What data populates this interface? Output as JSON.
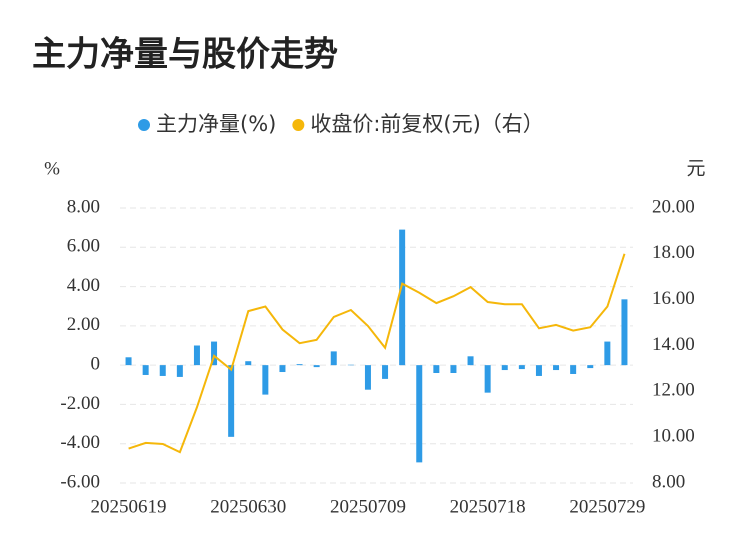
{
  "chart_data": {
    "type": "bar_line",
    "title": "主力净量与股价走势",
    "y_label": "%",
    "y2_label": "元",
    "categories": [
      "20250619",
      null,
      null,
      null,
      null,
      null,
      null,
      "20250630",
      null,
      null,
      null,
      null,
      null,
      null,
      "20250709",
      null,
      null,
      null,
      null,
      null,
      null,
      "20250718",
      null,
      null,
      null,
      null,
      null,
      null,
      "20250729",
      null
    ],
    "series": [
      {
        "name": "主力净量(%)",
        "type": "bar",
        "color": "#2e9be6",
        "values": [
          0.4,
          -0.5,
          -0.55,
          -0.6,
          1.0,
          1.2,
          -3.65,
          0.2,
          -1.5,
          -0.35,
          0.05,
          -0.1,
          0.7,
          0.02,
          -1.25,
          -0.7,
          6.9,
          -4.95,
          -0.4,
          -0.4,
          0.45,
          -1.4,
          -0.25,
          -0.2,
          -0.55,
          -0.25,
          -0.45,
          -0.15,
          1.2,
          3.35
        ]
      },
      {
        "name": "收盘价:前复权(元)（右）",
        "type": "line",
        "axis": "y2",
        "color": "#f5b70a",
        "values": [
          9.5,
          9.75,
          9.7,
          9.35,
          11.3,
          13.55,
          12.95,
          15.5,
          15.7,
          14.7,
          14.1,
          14.25,
          15.25,
          15.55,
          14.85,
          13.9,
          16.7,
          16.3,
          15.85,
          16.15,
          16.55,
          15.9,
          15.8,
          15.8,
          14.75,
          14.9,
          14.65,
          14.8,
          15.7,
          18.0
        ]
      }
    ],
    "ylim": [
      -6,
      8
    ],
    "yticks": [
      {
        "value": -6,
        "label": "-6.00"
      },
      {
        "value": -4,
        "label": "-4.00"
      },
      {
        "value": -2,
        "label": "-2.00"
      },
      0,
      {
        "value": 2,
        "label": "2.00"
      },
      {
        "value": 4,
        "label": "4.00"
      },
      {
        "value": 6,
        "label": "6.00"
      },
      {
        "value": 8,
        "label": "8.00"
      }
    ],
    "y2lim": [
      8,
      20
    ],
    "y2ticks": [
      {
        "value": 8,
        "label": "8.00"
      },
      {
        "value": 10,
        "label": "10.00"
      },
      {
        "value": 12,
        "label": "12.00"
      },
      {
        "value": 14,
        "label": "14.00"
      },
      {
        "value": 16,
        "label": "16.00"
      },
      {
        "value": 18,
        "label": "18.00"
      },
      {
        "value": 20,
        "label": "20.00"
      }
    ],
    "grid": true,
    "legend": "top"
  }
}
